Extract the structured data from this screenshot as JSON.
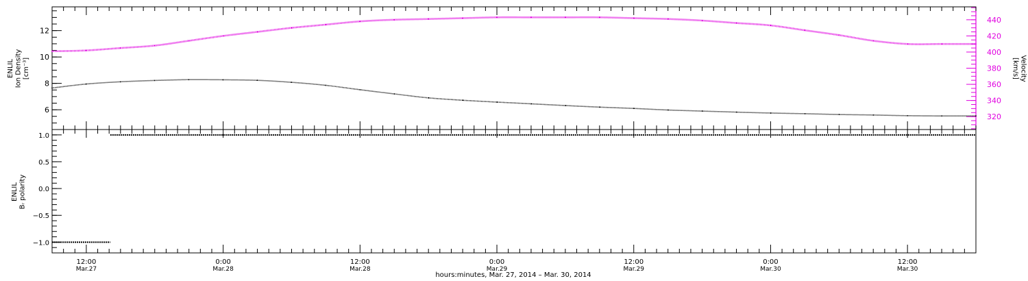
{
  "colors": {
    "axis": "#000000",
    "density": "#000000",
    "velocity": "#e000e0",
    "polarity": "#000000"
  },
  "chart_data": [
    {
      "type": "line",
      "panel": "density-velocity",
      "ylabel_lines": [
        "ENLIL",
        "Ion Density",
        "[cm⁻³]"
      ],
      "ylabel_right_lines": [
        "ENLIL",
        "Velocity",
        "[km/s]"
      ],
      "ylim": [
        4.5,
        13.8
      ],
      "ylim_right": [
        304,
        456
      ],
      "ytick_values": [
        6,
        8,
        10,
        12
      ],
      "ytick_labels": [
        "6",
        "8",
        "10",
        "12"
      ],
      "ytick_right_values": [
        320,
        340,
        360,
        380,
        400,
        420,
        440
      ],
      "ytick_right_labels": [
        "320",
        "340",
        "360",
        "380",
        "400",
        "420",
        "440"
      ],
      "series": [
        {
          "axis": "left",
          "color": "#000000",
          "x_hours": [
            0,
            3,
            6,
            9,
            12,
            15,
            18,
            21,
            24,
            27,
            30,
            33,
            36,
            39,
            42,
            45,
            48,
            51,
            54,
            57,
            60,
            63,
            66,
            69,
            72,
            75,
            78,
            81
          ],
          "values": [
            7.65,
            7.95,
            8.12,
            8.22,
            8.28,
            8.27,
            8.23,
            8.08,
            7.85,
            7.52,
            7.2,
            6.9,
            6.72,
            6.58,
            6.45,
            6.32,
            6.2,
            6.1,
            5.98,
            5.9,
            5.82,
            5.75,
            5.7,
            5.64,
            5.6,
            5.55,
            5.53,
            5.53
          ]
        },
        {
          "axis": "right",
          "color": "#e000e0",
          "x_hours": [
            0,
            3,
            6,
            9,
            12,
            15,
            18,
            21,
            24,
            27,
            30,
            33,
            36,
            39,
            42,
            45,
            48,
            51,
            54,
            57,
            60,
            63,
            66,
            69,
            72,
            75,
            78,
            81
          ],
          "values": [
            401,
            402,
            405,
            408,
            414,
            420,
            425,
            430,
            434,
            438,
            440,
            441,
            442,
            443,
            443,
            443,
            443,
            442,
            441,
            439,
            436,
            433,
            427,
            421,
            414,
            410,
            410,
            410
          ]
        }
      ]
    },
    {
      "type": "line",
      "panel": "polarity",
      "ylabel_lines": [
        "ENLIL",
        "Bᵣ polarity"
      ],
      "ylim": [
        -1.2,
        1.1
      ],
      "ytick_values": [
        -1.0,
        -0.5,
        0.0,
        0.5,
        1.0
      ],
      "ytick_labels": [
        "−1.0",
        "−0.5",
        "0.0",
        "0.5",
        "1.0"
      ],
      "series": [
        {
          "color": "#000000",
          "segments": [
            {
              "x_hours": [
                0,
                5.1
              ],
              "values": [
                -1.0,
                -1.0
              ]
            },
            {
              "x_hours": [
                5.1,
                81
              ],
              "values": [
                1.0,
                1.0
              ]
            }
          ]
        }
      ]
    }
  ],
  "xaxis": {
    "xlim_hours": [
      0,
      81
    ],
    "major_ticks": [
      {
        "hours": 3,
        "time": "12:00",
        "date": "Mar.27"
      },
      {
        "hours": 15,
        "time": "0:00",
        "date": "Mar.28"
      },
      {
        "hours": 27,
        "time": "12:00",
        "date": "Mar.28"
      },
      {
        "hours": 39,
        "time": "0:00",
        "date": "Mar.29"
      },
      {
        "hours": 51,
        "time": "12:00",
        "date": "Mar.29"
      },
      {
        "hours": 63,
        "time": "0:00",
        "date": "Mar.30"
      },
      {
        "hours": 75,
        "time": "12:00",
        "date": "Mar.30"
      }
    ],
    "title": "hours:minutes, Mar. 27, 2014 – Mar. 30, 2014"
  }
}
